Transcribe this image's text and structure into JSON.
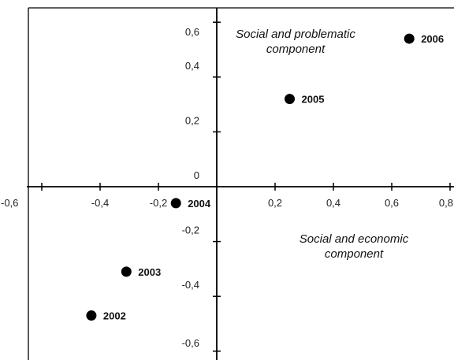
{
  "chart_data": {
    "type": "scatter",
    "title": "",
    "xlabel": "",
    "ylabel": "",
    "xlim": [
      -0.6,
      0.8
    ],
    "ylim": [
      -0.6,
      0.6
    ],
    "grid": false,
    "x_ticks": [
      {
        "value": -0.6,
        "label": "-0,6"
      },
      {
        "value": -0.4,
        "label": "-0,4"
      },
      {
        "value": -0.2,
        "label": "-0,2"
      },
      {
        "value": 0.2,
        "label": "0,2"
      },
      {
        "value": 0.4,
        "label": "0,4"
      },
      {
        "value": 0.6,
        "label": "0,6"
      },
      {
        "value": 0.8,
        "label": "0,8"
      }
    ],
    "y_ticks": [
      {
        "value": 0.6,
        "label": "0,6"
      },
      {
        "value": 0.4,
        "label": "0,4"
      },
      {
        "value": 0.2,
        "label": "0,2"
      },
      {
        "value": 0.0,
        "label": "0"
      },
      {
        "value": -0.2,
        "label": "-0,2"
      },
      {
        "value": -0.4,
        "label": "-0,4"
      },
      {
        "value": -0.6,
        "label": "-0,6"
      }
    ],
    "points": [
      {
        "label": "2002",
        "x": -0.43,
        "y": -0.47
      },
      {
        "label": "2003",
        "x": -0.31,
        "y": -0.31
      },
      {
        "label": "2004",
        "x": -0.14,
        "y": -0.06
      },
      {
        "label": "2005",
        "x": 0.25,
        "y": 0.32
      },
      {
        "label": "2006",
        "x": 0.66,
        "y": 0.54
      }
    ],
    "annotations": [
      {
        "id": "social-problematic",
        "lines": [
          "Social and problematic",
          "component"
        ]
      },
      {
        "id": "social-economic",
        "lines": [
          "Social and economic",
          "component"
        ]
      }
    ],
    "colors": {
      "axis": "#000000",
      "point": "#000000",
      "frame": "#000000"
    }
  }
}
